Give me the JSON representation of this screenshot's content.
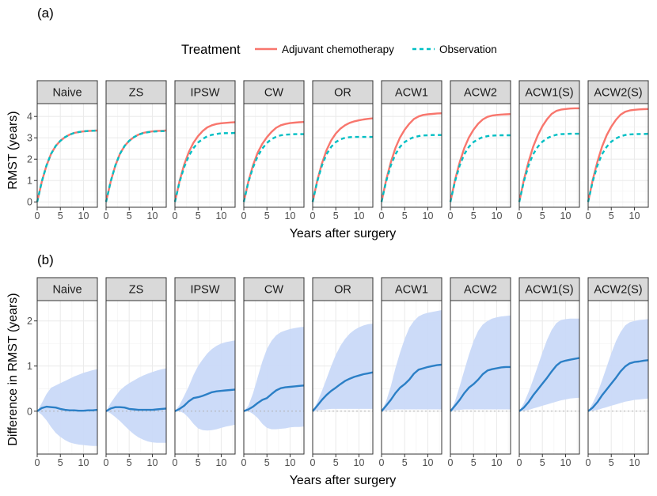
{
  "figure": {
    "legend": {
      "title": "Treatment",
      "entries": [
        {
          "label": "Adjuvant chemotherapy",
          "color": "#F8766D",
          "dash": "solid"
        },
        {
          "label": "Observation",
          "color": "#00BFC4",
          "dash": "dashed"
        }
      ]
    }
  },
  "chart_data": [
    {
      "id": "a",
      "panel_label": "(a)",
      "type": "line",
      "xlabel": "Years after surgery",
      "ylabel": "RMST (years)",
      "xlim": [
        0,
        13
      ],
      "ylim": [
        -0.25,
        4.6
      ],
      "x_ticks": [
        0,
        5,
        10
      ],
      "x_tick_labels": [
        "0",
        "5",
        "10"
      ],
      "y_ticks": [
        0,
        1,
        2,
        3,
        4
      ],
      "y_tick_labels": [
        "0",
        "1",
        "2",
        "3",
        "4"
      ],
      "x": [
        0,
        1,
        2,
        3,
        4,
        5,
        6,
        7,
        8,
        9,
        10,
        11,
        12,
        13
      ],
      "facets": [
        {
          "label": "Naive",
          "series": [
            {
              "name": "Adjuvant chemotherapy",
              "values": [
                0,
                0.95,
                1.7,
                2.25,
                2.62,
                2.86,
                3.03,
                3.15,
                3.23,
                3.27,
                3.3,
                3.32,
                3.33,
                3.34
              ]
            },
            {
              "name": "Observation",
              "values": [
                0,
                0.95,
                1.7,
                2.25,
                2.62,
                2.86,
                3.03,
                3.15,
                3.23,
                3.27,
                3.3,
                3.32,
                3.33,
                3.34
              ]
            }
          ]
        },
        {
          "label": "ZS",
          "series": [
            {
              "name": "Adjuvant chemotherapy",
              "values": [
                0,
                0.95,
                1.7,
                2.25,
                2.62,
                2.86,
                3.03,
                3.15,
                3.23,
                3.27,
                3.3,
                3.32,
                3.33,
                3.34
              ]
            },
            {
              "name": "Observation",
              "values": [
                0,
                0.95,
                1.7,
                2.25,
                2.62,
                2.86,
                3.03,
                3.15,
                3.22,
                3.26,
                3.29,
                3.3,
                3.31,
                3.31
              ]
            }
          ]
        },
        {
          "label": "IPSW",
          "series": [
            {
              "name": "Adjuvant chemotherapy",
              "values": [
                0,
                0.97,
                1.75,
                2.33,
                2.77,
                3.08,
                3.32,
                3.49,
                3.59,
                3.65,
                3.68,
                3.7,
                3.72,
                3.73
              ]
            },
            {
              "name": "Observation",
              "values": [
                0,
                0.93,
                1.63,
                2.15,
                2.52,
                2.78,
                2.95,
                3.07,
                3.14,
                3.18,
                3.21,
                3.22,
                3.22,
                3.23
              ]
            }
          ]
        },
        {
          "label": "CW",
          "series": [
            {
              "name": "Adjuvant chemotherapy",
              "values": [
                0,
                0.96,
                1.72,
                2.3,
                2.72,
                3.03,
                3.28,
                3.47,
                3.59,
                3.65,
                3.69,
                3.71,
                3.73,
                3.74
              ]
            },
            {
              "name": "Observation",
              "values": [
                0,
                0.93,
                1.62,
                2.13,
                2.5,
                2.76,
                2.94,
                3.05,
                3.12,
                3.15,
                3.16,
                3.17,
                3.17,
                3.17
              ]
            }
          ]
        },
        {
          "label": "OR",
          "series": [
            {
              "name": "Adjuvant chemotherapy",
              "values": [
                0,
                1.0,
                1.8,
                2.42,
                2.88,
                3.2,
                3.43,
                3.59,
                3.7,
                3.77,
                3.82,
                3.86,
                3.89,
                3.91
              ]
            },
            {
              "name": "Observation",
              "values": [
                0,
                0.96,
                1.7,
                2.23,
                2.58,
                2.8,
                2.93,
                3.0,
                3.03,
                3.04,
                3.04,
                3.04,
                3.04,
                3.04
              ]
            }
          ]
        },
        {
          "label": "ACW1",
          "series": [
            {
              "name": "Adjuvant chemotherapy",
              "values": [
                0,
                1.02,
                1.85,
                2.52,
                3.02,
                3.38,
                3.66,
                3.88,
                4.0,
                4.07,
                4.1,
                4.12,
                4.14,
                4.15
              ]
            },
            {
              "name": "Observation",
              "values": [
                0,
                0.96,
                1.7,
                2.23,
                2.58,
                2.8,
                2.94,
                3.03,
                3.08,
                3.11,
                3.12,
                3.13,
                3.13,
                3.13
              ]
            }
          ]
        },
        {
          "label": "ACW2",
          "series": [
            {
              "name": "Adjuvant chemotherapy",
              "values": [
                0,
                1.02,
                1.85,
                2.52,
                3.02,
                3.38,
                3.66,
                3.86,
                3.98,
                4.04,
                4.07,
                4.09,
                4.1,
                4.11
              ]
            },
            {
              "name": "Observation",
              "values": [
                0,
                0.96,
                1.7,
                2.23,
                2.58,
                2.8,
                2.94,
                3.03,
                3.08,
                3.1,
                3.11,
                3.12,
                3.12,
                3.12
              ]
            }
          ]
        },
        {
          "label": "ACW1(S)",
          "series": [
            {
              "name": "Adjuvant chemotherapy",
              "values": [
                0,
                1.03,
                1.88,
                2.58,
                3.12,
                3.54,
                3.87,
                4.12,
                4.26,
                4.32,
                4.35,
                4.37,
                4.38,
                4.38
              ]
            },
            {
              "name": "Observation",
              "values": [
                0,
                0.96,
                1.7,
                2.23,
                2.58,
                2.82,
                2.98,
                3.08,
                3.14,
                3.17,
                3.18,
                3.19,
                3.19,
                3.19
              ]
            }
          ]
        },
        {
          "label": "ACW2(S)",
          "series": [
            {
              "name": "Adjuvant chemotherapy",
              "values": [
                0,
                1.03,
                1.88,
                2.58,
                3.12,
                3.52,
                3.84,
                4.08,
                4.22,
                4.28,
                4.31,
                4.33,
                4.34,
                4.35
              ]
            },
            {
              "name": "Observation",
              "values": [
                0,
                0.96,
                1.7,
                2.23,
                2.58,
                2.82,
                2.97,
                3.07,
                3.13,
                3.16,
                3.17,
                3.18,
                3.18,
                3.19
              ]
            }
          ]
        }
      ]
    },
    {
      "id": "b",
      "panel_label": "(b)",
      "type": "line",
      "xlabel": "Years after surgery",
      "ylabel": "Difference in RMST (years)",
      "xlim": [
        0,
        13
      ],
      "ylim": [
        -0.95,
        2.45
      ],
      "x_ticks": [
        0,
        5,
        10
      ],
      "x_tick_labels": [
        "0",
        "5",
        "10"
      ],
      "y_ticks": [
        0,
        1,
        2
      ],
      "y_tick_labels": [
        "0",
        "1",
        "2"
      ],
      "reference_line": 0,
      "x": [
        0,
        1,
        2,
        3,
        4,
        5,
        6,
        7,
        8,
        9,
        10,
        11,
        12,
        13
      ],
      "facets": [
        {
          "label": "Naive",
          "estimate": [
            0,
            0.07,
            0.1,
            0.09,
            0.08,
            0.05,
            0.03,
            0.02,
            0.02,
            0.01,
            0.01,
            0.02,
            0.02,
            0.03
          ],
          "lower": [
            0,
            -0.08,
            -0.2,
            -0.35,
            -0.48,
            -0.57,
            -0.64,
            -0.69,
            -0.72,
            -0.74,
            -0.75,
            -0.76,
            -0.77,
            -0.77
          ],
          "upper": [
            0,
            0.18,
            0.38,
            0.52,
            0.57,
            0.62,
            0.67,
            0.72,
            0.77,
            0.81,
            0.85,
            0.88,
            0.91,
            0.93
          ]
        },
        {
          "label": "ZS",
          "estimate": [
            0,
            0.06,
            0.09,
            0.09,
            0.08,
            0.05,
            0.04,
            0.03,
            0.03,
            0.03,
            0.03,
            0.04,
            0.05,
            0.06
          ],
          "lower": [
            0,
            -0.05,
            -0.13,
            -0.22,
            -0.32,
            -0.42,
            -0.51,
            -0.58,
            -0.63,
            -0.67,
            -0.69,
            -0.7,
            -0.7,
            -0.7
          ],
          "upper": [
            0,
            0.18,
            0.33,
            0.46,
            0.55,
            0.62,
            0.68,
            0.74,
            0.79,
            0.83,
            0.87,
            0.9,
            0.93,
            0.95
          ]
        },
        {
          "label": "IPSW",
          "estimate": [
            0,
            0.05,
            0.12,
            0.22,
            0.29,
            0.31,
            0.34,
            0.38,
            0.42,
            0.44,
            0.45,
            0.46,
            0.47,
            0.48
          ],
          "lower": [
            0,
            0.0,
            -0.05,
            -0.15,
            -0.28,
            -0.38,
            -0.42,
            -0.43,
            -0.42,
            -0.4,
            -0.37,
            -0.34,
            -0.32,
            -0.3
          ],
          "upper": [
            0,
            0.14,
            0.34,
            0.55,
            0.8,
            1.0,
            1.15,
            1.28,
            1.38,
            1.45,
            1.5,
            1.53,
            1.55,
            1.57
          ]
        },
        {
          "label": "CW",
          "estimate": [
            0,
            0.04,
            0.1,
            0.18,
            0.25,
            0.29,
            0.38,
            0.46,
            0.51,
            0.53,
            0.54,
            0.55,
            0.56,
            0.57
          ],
          "lower": [
            0,
            0.0,
            -0.06,
            -0.15,
            -0.28,
            -0.37,
            -0.4,
            -0.4,
            -0.39,
            -0.38,
            -0.36,
            -0.35,
            -0.35,
            -0.34
          ],
          "upper": [
            0,
            0.12,
            0.4,
            0.75,
            1.1,
            1.38,
            1.56,
            1.68,
            1.75,
            1.79,
            1.82,
            1.84,
            1.86,
            1.87
          ]
        },
        {
          "label": "OR",
          "estimate": [
            0,
            0.12,
            0.25,
            0.36,
            0.45,
            0.52,
            0.6,
            0.67,
            0.72,
            0.76,
            0.79,
            0.82,
            0.84,
            0.86
          ],
          "lower": [
            0,
            0.02,
            0.03,
            0.04,
            0.05,
            0.05,
            0.05,
            0.05,
            0.05,
            0.05,
            0.05,
            0.05,
            0.05,
            0.05
          ],
          "upper": [
            0,
            0.2,
            0.45,
            0.72,
            1.0,
            1.25,
            1.45,
            1.6,
            1.72,
            1.8,
            1.86,
            1.9,
            1.93,
            1.94
          ]
        },
        {
          "label": "ACW1",
          "estimate": [
            0,
            0.12,
            0.25,
            0.4,
            0.52,
            0.6,
            0.7,
            0.83,
            0.92,
            0.95,
            0.98,
            1.0,
            1.02,
            1.03
          ],
          "lower": [
            0,
            0.02,
            0.03,
            0.04,
            0.04,
            0.04,
            0.04,
            0.04,
            0.04,
            0.04,
            0.04,
            0.04,
            0.04,
            0.04
          ],
          "upper": [
            0,
            0.22,
            0.55,
            0.95,
            1.3,
            1.6,
            1.85,
            2.0,
            2.1,
            2.15,
            2.18,
            2.2,
            2.22,
            2.24
          ]
        },
        {
          "label": "ACW2",
          "estimate": [
            0,
            0.12,
            0.25,
            0.4,
            0.52,
            0.6,
            0.7,
            0.82,
            0.9,
            0.93,
            0.95,
            0.97,
            0.98,
            0.98
          ],
          "lower": [
            0,
            0.02,
            0.03,
            0.04,
            0.04,
            0.04,
            0.04,
            0.04,
            0.04,
            0.04,
            0.04,
            0.04,
            0.04,
            0.04
          ],
          "upper": [
            0,
            0.22,
            0.55,
            0.9,
            1.25,
            1.55,
            1.78,
            1.92,
            2.0,
            2.05,
            2.08,
            2.1,
            2.11,
            2.12
          ]
        },
        {
          "label": "ACW1(S)",
          "estimate": [
            0,
            0.08,
            0.2,
            0.35,
            0.48,
            0.61,
            0.74,
            0.88,
            1.01,
            1.09,
            1.12,
            1.14,
            1.16,
            1.18
          ],
          "lower": [
            0,
            0.01,
            0.03,
            0.06,
            0.09,
            0.12,
            0.15,
            0.18,
            0.21,
            0.24,
            0.26,
            0.28,
            0.29,
            0.3
          ],
          "upper": [
            0,
            0.18,
            0.42,
            0.7,
            1.0,
            1.3,
            1.58,
            1.8,
            1.95,
            2.02,
            2.04,
            2.05,
            2.05,
            2.05
          ]
        },
        {
          "label": "ACW2(S)",
          "estimate": [
            0,
            0.08,
            0.2,
            0.35,
            0.48,
            0.61,
            0.74,
            0.88,
            0.99,
            1.06,
            1.09,
            1.1,
            1.12,
            1.13
          ],
          "lower": [
            0,
            0.01,
            0.03,
            0.06,
            0.09,
            0.12,
            0.15,
            0.18,
            0.21,
            0.23,
            0.25,
            0.26,
            0.27,
            0.28
          ],
          "upper": [
            0,
            0.18,
            0.4,
            0.68,
            0.98,
            1.28,
            1.55,
            1.75,
            1.9,
            1.97,
            2.0,
            2.02,
            2.03,
            2.04
          ]
        }
      ]
    }
  ]
}
